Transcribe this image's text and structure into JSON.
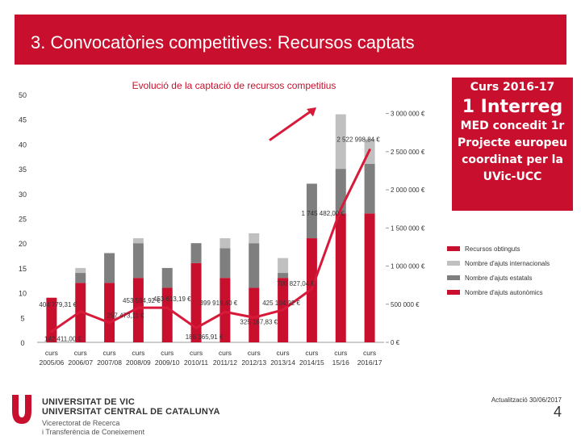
{
  "slide": {
    "title": "3. Convocatòries competitives: Recursos captats",
    "side_box": {
      "line1": "Curs 2016-17",
      "line2": "1 Interreg",
      "line3": "MED concedit 1r Projecte europeu coordinat per la UVic-UCC"
    },
    "footer": {
      "uni1": "UNIVERSITAT DE VIC",
      "uni2": "UNIVERSITAT CENTRAL DE CATALUNYA",
      "vice1": "Vicerectorat de Recerca",
      "vice2": "i Transferència de Coneixement",
      "updated": "Actualització 30/06/2017",
      "page": "4"
    }
  },
  "colors": {
    "red": "#c8102e",
    "dark_gray": "#7f7f7f",
    "light_gray": "#c0c0c0",
    "line_red": "#d7193a"
  },
  "chart_data": {
    "type": "bar",
    "title": "Evolució de la captació de recursos competitius",
    "categories": [
      "curs 2005/06",
      "curs 2006/07",
      "curs 2007/08",
      "curs 2008/09",
      "curs 2009/10",
      "curs 2010/11",
      "curs 2011/12",
      "curs 2012/13",
      "curs 2013/14",
      "curs 2014/15",
      "curs 15/16",
      "curs 2016/17"
    ],
    "category_lines": [
      [
        "curs",
        "2005/06"
      ],
      [
        "curs",
        "2006/07"
      ],
      [
        "curs",
        "2007/08"
      ],
      [
        "curs",
        "2008/09"
      ],
      [
        "curs",
        "2009/10"
      ],
      [
        "curs",
        "2010/11"
      ],
      [
        "curs",
        "2011/12"
      ],
      [
        "curs",
        "2012/13"
      ],
      [
        "curs",
        "2013/14"
      ],
      [
        "curs",
        "2014/15"
      ],
      [
        "curs",
        "15/16"
      ],
      [
        "curs",
        "2016/17"
      ]
    ],
    "left_axis": {
      "ylim": [
        0,
        50
      ],
      "ticks": [
        0,
        5,
        10,
        15,
        20,
        25,
        30,
        35,
        40,
        45,
        50
      ],
      "tick_labels": [
        "0",
        "5",
        "10",
        "15",
        "20",
        "25",
        "30",
        "35",
        "40",
        "45",
        "50"
      ]
    },
    "right_axis": {
      "ylim": [
        0,
        3250000
      ],
      "ticks": [
        0,
        500000,
        1000000,
        1500000,
        2000000,
        2500000,
        3000000
      ],
      "tick_labels": [
        "0 €",
        "500 000 €",
        "1 000 000 €",
        "1 500 000 €",
        "2 000 000 €",
        "2 500 000 €",
        "3 000 000 €"
      ]
    },
    "series": [
      {
        "name": "Nombre d'ajuts autonòmics",
        "color_key": "red",
        "values": [
          9,
          12,
          12,
          13,
          11,
          16,
          13,
          11,
          13,
          21,
          26,
          26
        ]
      },
      {
        "name": "Nombre d'ajuts estatals",
        "color_key": "dark_gray",
        "values": [
          0,
          2,
          6,
          7,
          4,
          4,
          6,
          9,
          1,
          11,
          9,
          10
        ]
      },
      {
        "name": "Nombre d'ajuts internacionals",
        "color_key": "light_gray",
        "values": [
          0,
          1,
          0,
          1,
          0,
          0,
          2,
          2,
          3,
          0,
          11,
          5
        ]
      }
    ],
    "money_series": {
      "name": "Recursos obtinguts",
      "values": [
        142411,
        404779.31,
        257473.11,
        453594.92,
        453613.19,
        188365.91,
        399919.4,
        325167.83,
        425104.92,
        700827.04,
        1745482,
        2522998.84
      ],
      "labels": [
        "142 411,00 €",
        "404 779,31 €",
        "257 473,11 €",
        "453 594,92 €",
        "453 613,19 €",
        "188 365,91 €",
        "399 919,40 €",
        "325 167,83 €",
        "425 104,92 €",
        "700 827,04 €",
        "1 745 482,00 €",
        "2 522 998,84 €"
      ]
    },
    "legend": [
      "Recursos obtinguts",
      "Nombre d'ajuts internacionals",
      "Nombre d'ajuts estatals",
      "Nombre d'ajuts autonòmics"
    ]
  }
}
